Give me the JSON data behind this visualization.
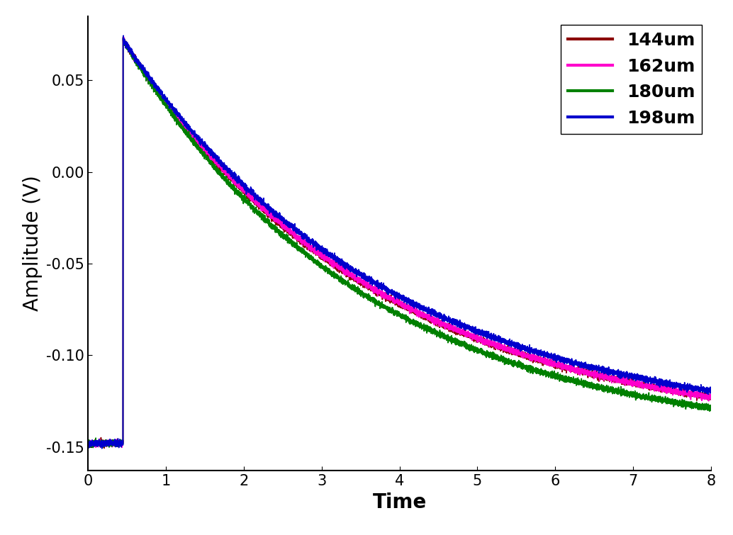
{
  "title": "",
  "xlabel": "Time",
  "ylabel": "Amplitude (V)",
  "xlim": [
    0,
    8
  ],
  "ylim": [
    -0.163,
    0.085
  ],
  "yticks": [
    -0.15,
    -0.1,
    -0.05,
    0.0,
    0.05
  ],
  "xticks": [
    0,
    1,
    2,
    3,
    4,
    5,
    6,
    7,
    8
  ],
  "series": [
    {
      "label": "144um",
      "color": "#8B0000",
      "tau": 3.2,
      "final": -0.143
    },
    {
      "label": "162um",
      "color": "#FF00CC",
      "tau": 3.25,
      "final": -0.144
    },
    {
      "label": "180um",
      "color": "#008000",
      "tau": 3.1,
      "final": -0.148
    },
    {
      "label": "198um",
      "color": "#0000CC",
      "tau": 3.35,
      "final": -0.142
    }
  ],
  "peak": 0.072,
  "t_step": 0.45,
  "baseline": -0.148,
  "noise_amp": 0.0008,
  "legend_fontsize": 18,
  "axis_label_fontsize": 20,
  "tick_fontsize": 15,
  "background_color": "#ffffff",
  "linewidth": 1.2
}
